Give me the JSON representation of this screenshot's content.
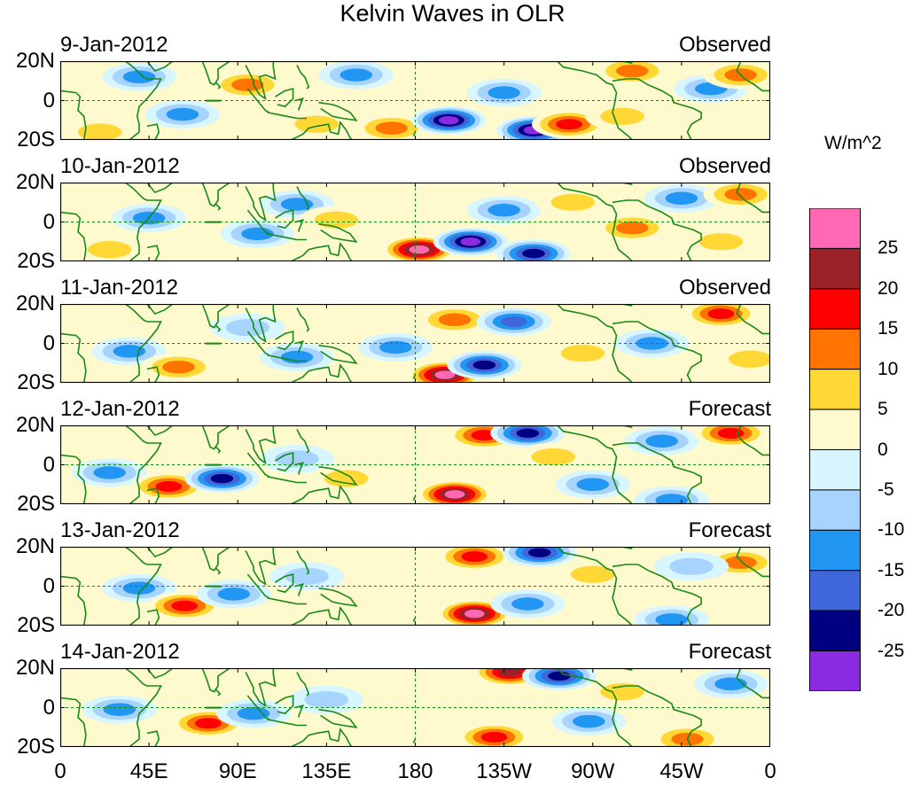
{
  "title": "Kelvin Waves in OLR",
  "units": "W/m^2",
  "lat_labels": [
    "20N",
    "0",
    "20S"
  ],
  "x_ticks": [
    "0",
    "45E",
    "90E",
    "135E",
    "180",
    "135W",
    "90W",
    "45W",
    "0"
  ],
  "colorbar": {
    "levels": [
      "25",
      "20",
      "15",
      "10",
      "5",
      "0",
      "-5",
      "-10",
      "-15",
      "-20",
      "-25"
    ],
    "colors": [
      "#ff69b4",
      "#9b2226",
      "#ff0000",
      "#ff7300",
      "#ffd835",
      "#fffacd",
      "#d7f6ff",
      "#a6d4ff",
      "#2196f3",
      "#3f67d9",
      "#000080",
      "#8a2be2"
    ]
  },
  "panels": [
    {
      "date": "9-Jan-2012",
      "status": "Observed"
    },
    {
      "date": "10-Jan-2012",
      "status": "Observed"
    },
    {
      "date": "11-Jan-2012",
      "status": "Observed"
    },
    {
      "date": "12-Jan-2012",
      "status": "Forecast"
    },
    {
      "date": "13-Jan-2012",
      "status": "Forecast"
    },
    {
      "date": "14-Jan-2012",
      "status": "Forecast"
    }
  ],
  "anomalies": [
    [
      {
        "lon": 40,
        "lat": 12,
        "v": -14
      },
      {
        "lon": 62,
        "lat": -7,
        "v": -12
      },
      {
        "lon": 20,
        "lat": -16,
        "v": 7
      },
      {
        "lon": 95,
        "lat": 8,
        "v": 11
      },
      {
        "lon": 130,
        "lat": -12,
        "v": 8
      },
      {
        "lon": 150,
        "lat": 13,
        "v": -10
      },
      {
        "lon": 168,
        "lat": -14,
        "v": 13
      },
      {
        "lon": 197,
        "lat": -10,
        "v": -28
      },
      {
        "lon": 240,
        "lat": -15,
        "v": -27
      },
      {
        "lon": 258,
        "lat": -12,
        "v": 17
      },
      {
        "lon": 225,
        "lat": 4,
        "v": -11
      },
      {
        "lon": 285,
        "lat": -8,
        "v": 9
      },
      {
        "lon": 290,
        "lat": 15,
        "v": 11
      },
      {
        "lon": 330,
        "lat": 6,
        "v": -12
      },
      {
        "lon": 345,
        "lat": 13,
        "v": 12
      }
    ],
    [
      {
        "lon": 45,
        "lat": 2,
        "v": -10
      },
      {
        "lon": 25,
        "lat": -14,
        "v": 8
      },
      {
        "lon": 100,
        "lat": -6,
        "v": -13
      },
      {
        "lon": 120,
        "lat": 9,
        "v": -10
      },
      {
        "lon": 140,
        "lat": 1,
        "v": 9
      },
      {
        "lon": 182,
        "lat": -14,
        "v": 26
      },
      {
        "lon": 208,
        "lat": -10,
        "v": -28
      },
      {
        "lon": 240,
        "lat": -16,
        "v": -22
      },
      {
        "lon": 225,
        "lat": 6,
        "v": -12
      },
      {
        "lon": 260,
        "lat": 10,
        "v": 8
      },
      {
        "lon": 290,
        "lat": -3,
        "v": 12
      },
      {
        "lon": 315,
        "lat": 12,
        "v": -11
      },
      {
        "lon": 335,
        "lat": -10,
        "v": 9
      },
      {
        "lon": 345,
        "lat": 14,
        "v": 10
      }
    ],
    [
      {
        "lon": 35,
        "lat": -4,
        "v": -12
      },
      {
        "lon": 60,
        "lat": -12,
        "v": 13
      },
      {
        "lon": 95,
        "lat": 8,
        "v": -9
      },
      {
        "lon": 120,
        "lat": -7,
        "v": -10
      },
      {
        "lon": 170,
        "lat": -2,
        "v": -11
      },
      {
        "lon": 195,
        "lat": -16,
        "v": 26
      },
      {
        "lon": 215,
        "lat": -11,
        "v": -24
      },
      {
        "lon": 200,
        "lat": 12,
        "v": 12
      },
      {
        "lon": 230,
        "lat": 11,
        "v": -15
      },
      {
        "lon": 265,
        "lat": -5,
        "v": 7
      },
      {
        "lon": 300,
        "lat": 0,
        "v": -12
      },
      {
        "lon": 335,
        "lat": 15,
        "v": 18
      },
      {
        "lon": 350,
        "lat": -8,
        "v": 8
      }
    ],
    [
      {
        "lon": 25,
        "lat": -4,
        "v": -12
      },
      {
        "lon": 55,
        "lat": -11,
        "v": 16
      },
      {
        "lon": 82,
        "lat": -7,
        "v": -22
      },
      {
        "lon": 120,
        "lat": 3,
        "v": -9
      },
      {
        "lon": 145,
        "lat": -7,
        "v": 8
      },
      {
        "lon": 200,
        "lat": -15,
        "v": 26
      },
      {
        "lon": 215,
        "lat": 15,
        "v": 15
      },
      {
        "lon": 237,
        "lat": 16,
        "v": -22
      },
      {
        "lon": 250,
        "lat": 4,
        "v": 9
      },
      {
        "lon": 270,
        "lat": -10,
        "v": -10
      },
      {
        "lon": 305,
        "lat": 12,
        "v": -12
      },
      {
        "lon": 340,
        "lat": 16,
        "v": 17
      },
      {
        "lon": 310,
        "lat": -18,
        "v": -13
      }
    ],
    [
      {
        "lon": 40,
        "lat": -1,
        "v": -13
      },
      {
        "lon": 63,
        "lat": -10,
        "v": 18
      },
      {
        "lon": 88,
        "lat": -4,
        "v": -14
      },
      {
        "lon": 125,
        "lat": 5,
        "v": -8
      },
      {
        "lon": 210,
        "lat": 15,
        "v": 16
      },
      {
        "lon": 243,
        "lat": 17,
        "v": -24
      },
      {
        "lon": 210,
        "lat": -14,
        "v": 25
      },
      {
        "lon": 237,
        "lat": -9,
        "v": -12
      },
      {
        "lon": 270,
        "lat": 6,
        "v": 9
      },
      {
        "lon": 310,
        "lat": -17,
        "v": -14
      },
      {
        "lon": 345,
        "lat": 12,
        "v": 11
      },
      {
        "lon": 320,
        "lat": 10,
        "v": -8
      }
    ],
    [
      {
        "lon": 30,
        "lat": -1,
        "v": -14
      },
      {
        "lon": 75,
        "lat": -8,
        "v": 18
      },
      {
        "lon": 98,
        "lat": -3,
        "v": -12
      },
      {
        "lon": 135,
        "lat": 4,
        "v": -8
      },
      {
        "lon": 228,
        "lat": 18,
        "v": 22
      },
      {
        "lon": 253,
        "lat": 16,
        "v": -22
      },
      {
        "lon": 220,
        "lat": -15,
        "v": 17
      },
      {
        "lon": 268,
        "lat": -7,
        "v": -11
      },
      {
        "lon": 285,
        "lat": 8,
        "v": 9
      },
      {
        "lon": 318,
        "lat": -16,
        "v": 14
      },
      {
        "lon": 340,
        "lat": 12,
        "v": -10
      }
    ]
  ]
}
